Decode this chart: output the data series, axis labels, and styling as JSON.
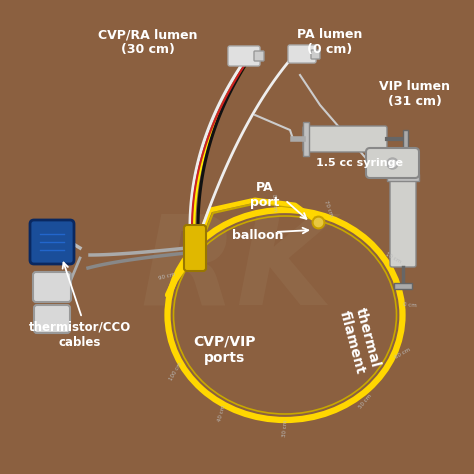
{
  "bg_color": "#8B6040",
  "bg_color2": "#7A5535",
  "labels": {
    "cvp_ra": "CVP/RA lumen\n(30 cm)",
    "pa_lumen": "PA lumen\n(0 cm)",
    "vip_lumen": "VIP lumen\n(31 cm)",
    "syringe": "1.5 cc syringe",
    "pa_port": "PA\nport",
    "balloon": "balloon",
    "thermistor": "thermistor/CCO\ncables",
    "cvp_vip": "CVP/VIP\nports",
    "thermal": "thermal\nfilament"
  },
  "catheter_color": "#FFD700",
  "catheter_dark": "#C8A800",
  "wire_white": "#EEEEEE",
  "wire_yellow": "#FFEE00",
  "wire_black": "#111111",
  "wire_red": "#CC2222",
  "connector_blue": "#1A4E9A",
  "connector_white": "#D8D8D8",
  "syringe_color": "#D0D0CC",
  "text_color": "#FFFFFF",
  "watermark_color": "#A08060",
  "dist_color": "#BBBBBB",
  "hub_color": "#E0B800",
  "pa_ball_color": "#C8A000"
}
